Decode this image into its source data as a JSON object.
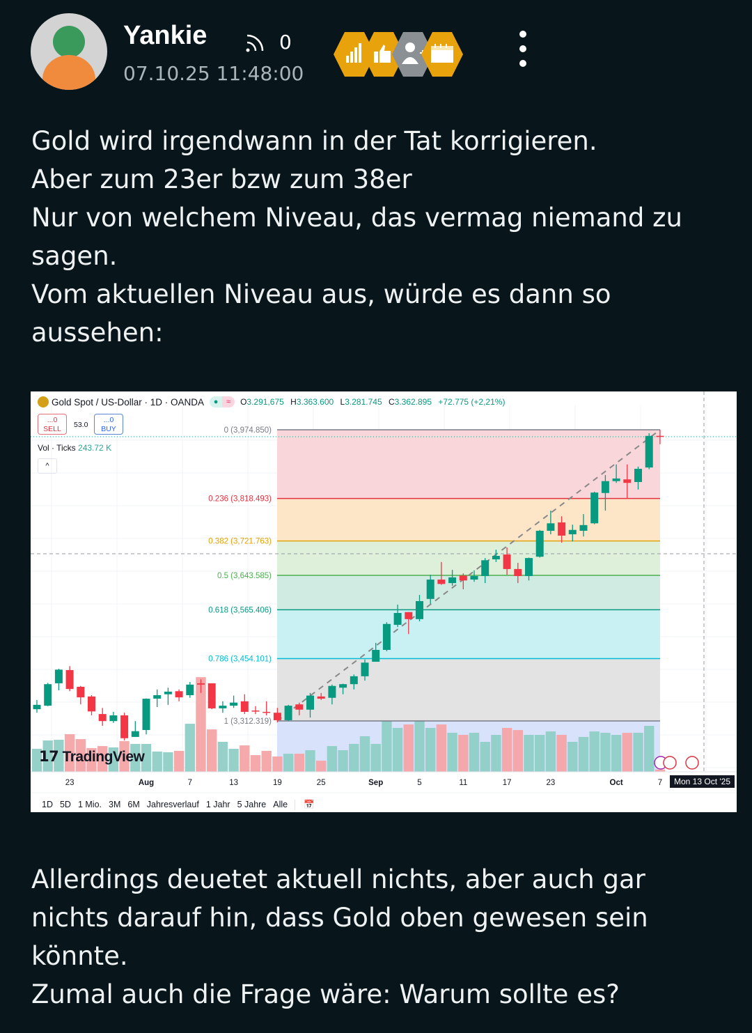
{
  "author": {
    "name": "Yankie",
    "timestamp": "07.10.25 11:48:00",
    "followers": "0"
  },
  "badges": [
    {
      "icon": "bar-chart-icon",
      "color": "#e8a20c"
    },
    {
      "icon": "thumbs-up-icon",
      "color": "#e8a20c"
    },
    {
      "icon": "add-user-icon",
      "color": "#8a9093"
    },
    {
      "icon": "calendar-icon",
      "color": "#e8a20c"
    }
  ],
  "post": {
    "paragraph1": [
      "Gold wird irgendwann in der Tat korrigieren.",
      "Aber zum 23er bzw zum 38er",
      "Nur von welchem Niveau, das vermag niemand zu",
      "sagen.",
      "Vom aktuellen Niveau aus, würde es dann so",
      "aussehen:"
    ],
    "paragraph2": [
      "Allerdings deuetet aktuell nichts, aber auch gar",
      "nichts darauf hin, dass Gold oben gewesen sein",
      "könnte.",
      "Zumal auch die Frage wäre: Warum sollte es?"
    ]
  },
  "chart_header": {
    "symbol": "Gold Spot / US-Dollar · 1D · OANDA",
    "open_label": "O",
    "open": "3.291,675",
    "high_label": "H",
    "high": "3.363.600",
    "low_label": "L",
    "low": "3.281.745",
    "close_label": "C",
    "close": "3.362.895",
    "change": "+72.775 (+2,21%)",
    "sell_price": "...0",
    "sell_label": "SELL",
    "spread": "53.0",
    "buy_price": "...0",
    "buy_label": "BUY",
    "volume_label": "Vol · Ticks",
    "volume_value": "243.72 K",
    "collapse": "^"
  },
  "brand": "TradingView",
  "crosshair_date": "Mon 13 Oct '25",
  "range_buttons": [
    "1D",
    "5D",
    "1 Mio.",
    "3M",
    "6M",
    "Jahresverlauf",
    "1 Jahr",
    "5 Jahre",
    "Alle"
  ],
  "colors": {
    "up": "#089981",
    "down": "#f23645",
    "vol_up": "#8fcfc6",
    "vol_down": "#f5a4a6"
  },
  "chart_data": {
    "type": "candlestick",
    "title": "Gold Spot / US-Dollar · 1D · OANDA",
    "x_tick_labels": [
      "23",
      "Aug",
      "7",
      "13",
      "19",
      "25",
      "Sep",
      "5",
      "11",
      "17",
      "23",
      "Oct",
      "7"
    ],
    "x_tick_dates": [
      "2025-07-23",
      "2025-08-01",
      "2025-08-07",
      "2025-08-13",
      "2025-08-19",
      "2025-08-25",
      "2025-09-01",
      "2025-09-05",
      "2025-09-11",
      "2025-09-17",
      "2025-09-23",
      "2025-10-01",
      "2025-10-07"
    ],
    "dates": [
      "2025-07-18",
      "2025-07-21",
      "2025-07-22",
      "2025-07-23",
      "2025-07-24",
      "2025-07-25",
      "2025-07-28",
      "2025-07-29",
      "2025-07-30",
      "2025-07-31",
      "2025-08-01",
      "2025-08-04",
      "2025-08-05",
      "2025-08-06",
      "2025-08-07",
      "2025-08-08",
      "2025-08-11",
      "2025-08-12",
      "2025-08-13",
      "2025-08-14",
      "2025-08-15",
      "2025-08-18",
      "2025-08-19",
      "2025-08-20",
      "2025-08-21",
      "2025-08-22",
      "2025-08-25",
      "2025-08-26",
      "2025-08-27",
      "2025-08-28",
      "2025-08-29",
      "2025-09-01",
      "2025-09-02",
      "2025-09-03",
      "2025-09-04",
      "2025-09-05",
      "2025-09-08",
      "2025-09-09",
      "2025-09-10",
      "2025-09-11",
      "2025-09-12",
      "2025-09-15",
      "2025-09-16",
      "2025-09-17",
      "2025-09-18",
      "2025-09-19",
      "2025-09-22",
      "2025-09-23",
      "2025-09-24",
      "2025-09-25",
      "2025-09-26",
      "2025-09-29",
      "2025-09-30",
      "2025-10-01",
      "2025-10-02",
      "2025-10-03",
      "2025-10-06",
      "2025-10-07"
    ],
    "ohlc": [
      [
        3339,
        3360,
        3331,
        3349
      ],
      [
        3347,
        3399,
        3346,
        3396
      ],
      [
        3398,
        3431,
        3382,
        3429
      ],
      [
        3428,
        3437,
        3380,
        3385
      ],
      [
        3390,
        3392,
        3350,
        3366
      ],
      [
        3368,
        3371,
        3325,
        3334
      ],
      [
        3328,
        3342,
        3301,
        3312
      ],
      [
        3312,
        3333,
        3308,
        3325
      ],
      [
        3325,
        3331,
        3268,
        3273
      ],
      [
        3276,
        3312,
        3276,
        3289
      ],
      [
        3291.675,
        3363.6,
        3281.745,
        3362.895
      ],
      [
        3363,
        3384,
        3344,
        3371
      ],
      [
        3373,
        3388,
        3349,
        3379
      ],
      [
        3380,
        3384,
        3357,
        3366
      ],
      [
        3371,
        3401,
        3365,
        3395
      ],
      [
        3398,
        3407,
        3376,
        3395
      ],
      [
        3398,
        3398,
        3339,
        3341
      ],
      [
        3341,
        3357,
        3331,
        3347
      ],
      [
        3347,
        3370,
        3342,
        3354
      ],
      [
        3357,
        3373,
        3328,
        3333
      ],
      [
        3336,
        3346,
        3328,
        3334
      ],
      [
        3333,
        3357,
        3325,
        3331
      ],
      [
        3331,
        3342,
        3309,
        3314
      ],
      [
        3314,
        3349,
        3312,
        3347
      ],
      [
        3350,
        3354,
        3325,
        3338
      ],
      [
        3338,
        3376,
        3320,
        3370
      ],
      [
        3368,
        3376,
        3360,
        3363
      ],
      [
        3365,
        3395,
        3350,
        3392
      ],
      [
        3388,
        3397,
        3373,
        3396
      ],
      [
        3396,
        3418,
        3384,
        3414
      ],
      [
        3414,
        3452,
        3404,
        3445
      ],
      [
        3447,
        3490,
        3447,
        3474
      ],
      [
        3474,
        3537,
        3471,
        3533
      ],
      [
        3531,
        3577,
        3526,
        3558
      ],
      [
        3560,
        3560,
        3510,
        3544
      ],
      [
        3544,
        3599,
        3539,
        3585
      ],
      [
        3590,
        3645,
        3579,
        3634
      ],
      [
        3634,
        3674,
        3622,
        3624
      ],
      [
        3626,
        3656,
        3620,
        3639
      ],
      [
        3643,
        3648,
        3612,
        3632
      ],
      [
        3634,
        3655,
        3629,
        3642
      ],
      [
        3642,
        3683,
        3626,
        3678
      ],
      [
        3680,
        3702,
        3674,
        3688
      ],
      [
        3691,
        3707,
        3645,
        3658
      ],
      [
        3658,
        3672,
        3626,
        3642
      ],
      [
        3642,
        3684,
        3632,
        3683
      ],
      [
        3686,
        3747,
        3684,
        3745
      ],
      [
        3745,
        3791,
        3737,
        3762
      ],
      [
        3764,
        3778,
        3718,
        3734
      ],
      [
        3737,
        3759,
        3721,
        3747
      ],
      [
        3745,
        3783,
        3732,
        3758
      ],
      [
        3762,
        3834,
        3760,
        3832
      ],
      [
        3831,
        3872,
        3791,
        3858
      ],
      [
        3858,
        3896,
        3854,
        3864
      ],
      [
        3862,
        3896,
        3818,
        3854
      ],
      [
        3856,
        3891,
        3839,
        3886
      ],
      [
        3889,
        3967,
        3885,
        3961
      ],
      [
        3961,
        3974.85,
        3942,
        3959
      ]
    ],
    "volume_k": [
      201,
      274,
      280,
      329,
      286,
      207,
      225,
      213,
      268,
      244,
      243.72,
      177,
      171,
      183,
      420,
      828,
      371,
      262,
      201,
      231,
      146,
      183,
      134,
      158,
      158,
      189,
      97,
      225,
      189,
      244,
      311,
      244,
      445,
      384,
      414,
      445,
      384,
      414,
      341,
      323,
      341,
      262,
      323,
      384,
      365,
      323,
      323,
      353,
      323,
      262,
      305,
      353,
      341,
      323,
      341,
      341,
      402,
      20
    ],
    "fibonacci": [
      {
        "ratio": "0",
        "price": 3974.85,
        "label": "0 (3,974.850)",
        "color": "#787b86",
        "fill": "#f9d6d9"
      },
      {
        "ratio": "0.236",
        "price": 3818.493,
        "label": "0.236 (3,818.493)",
        "color": "#e0323f",
        "fill": "#fde6c8"
      },
      {
        "ratio": "0.382",
        "price": 3721.763,
        "label": "0.382 (3,721.763)",
        "color": "#e3a008",
        "fill": "#dff0da"
      },
      {
        "ratio": "0.5",
        "price": 3643.585,
        "label": "0.5 (3,643.585)",
        "color": "#4caf50",
        "fill": "#d0ebe2"
      },
      {
        "ratio": "0.618",
        "price": 3565.406,
        "label": "0.618 (3,565.406)",
        "color": "#089981",
        "fill": "#c9f0f3"
      },
      {
        "ratio": "0.786",
        "price": 3454.101,
        "label": "0.786 (3,454.101)",
        "color": "#00bcd4",
        "fill": "#e3e3e3"
      },
      {
        "ratio": "1",
        "price": 3312.319,
        "label": "1 (3,312.319)",
        "color": "#787b86",
        "fill": "#d9e2fb"
      }
    ],
    "last_price": 3959,
    "grid": true
  }
}
